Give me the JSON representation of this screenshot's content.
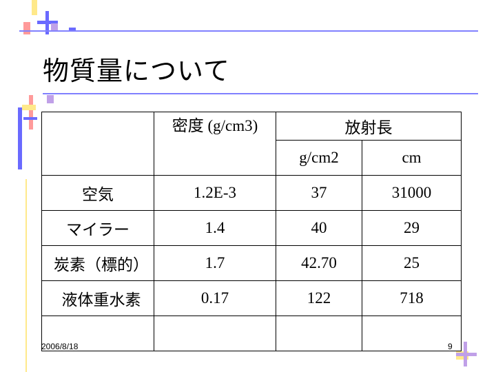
{
  "slide": {
    "title": "物質量について",
    "date": "2006/8/18",
    "page_number": "9"
  },
  "table": {
    "header_density": "密度 (g/cm3)",
    "header_radiation": "放射長",
    "unit_gcm2": "g/cm2",
    "unit_cm": "cm",
    "rows": [
      {
        "material": "空気",
        "density": "1.2E-3",
        "x0_gcm2": "37",
        "x0_cm": "31000"
      },
      {
        "material": "マイラー",
        "density": "1.4",
        "x0_gcm2": "40",
        "x0_cm": "29"
      },
      {
        "material": "炭素（標的）",
        "density": "1.7",
        "x0_gcm2": "42.70",
        "x0_cm": "25"
      },
      {
        "material": "液体重水素",
        "density": "0.17",
        "x0_gcm2": "122",
        "x0_cm": "718"
      },
      {
        "material": "",
        "density": "",
        "x0_gcm2": "",
        "x0_cm": ""
      }
    ]
  },
  "colors": {
    "accent_blue": "#6a6aff",
    "accent_pink": "#ff9a9a",
    "accent_yellow": "#ffe98a",
    "accent_lilac": "#c0a0e8",
    "rule": "#8080ff"
  }
}
